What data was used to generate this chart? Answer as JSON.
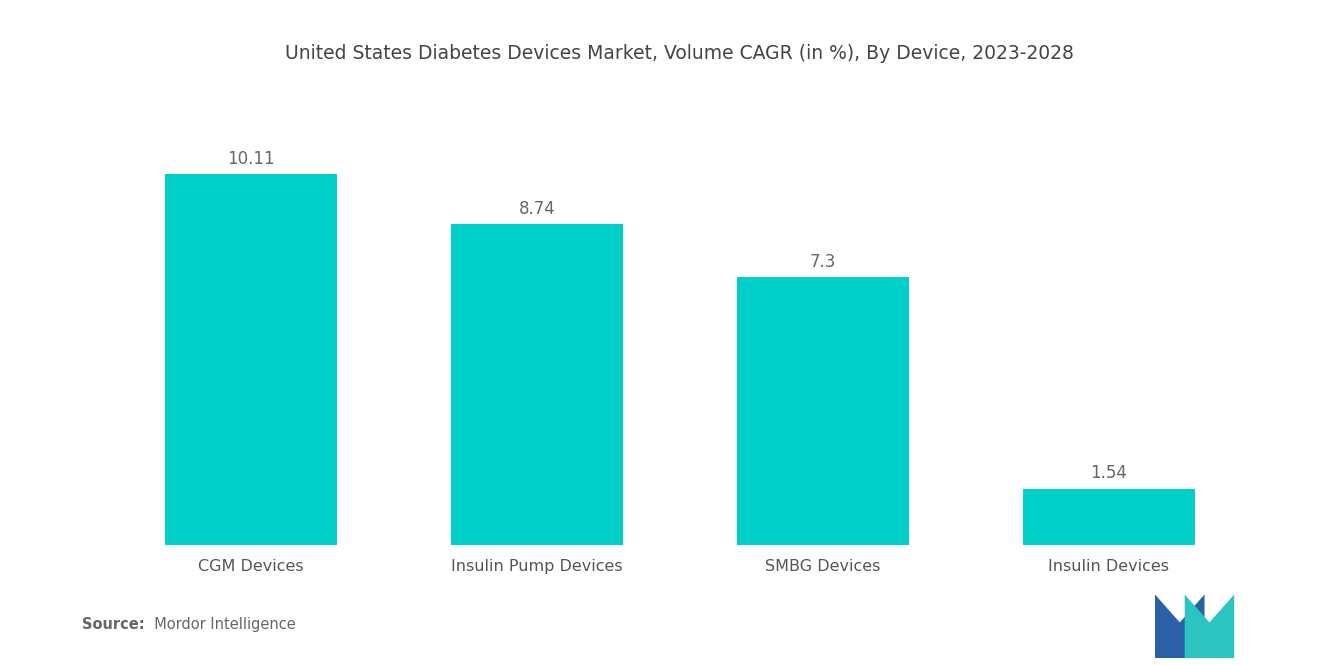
{
  "title": "United States Diabetes Devices Market, Volume CAGR (in %), By Device, 2023-2028",
  "categories": [
    "CGM Devices",
    "Insulin Pump Devices",
    "SMBG Devices",
    "Insulin Devices"
  ],
  "values": [
    10.11,
    8.74,
    7.3,
    1.54
  ],
  "bar_color": "#00D0C7",
  "background_color": "#ffffff",
  "title_fontsize": 13.5,
  "label_fontsize": 11.5,
  "value_fontsize": 12,
  "source_bold": "Source:",
  "source_normal": "  Mordor Intelligence",
  "ylim": [
    0,
    12.5
  ],
  "bar_width": 0.6
}
